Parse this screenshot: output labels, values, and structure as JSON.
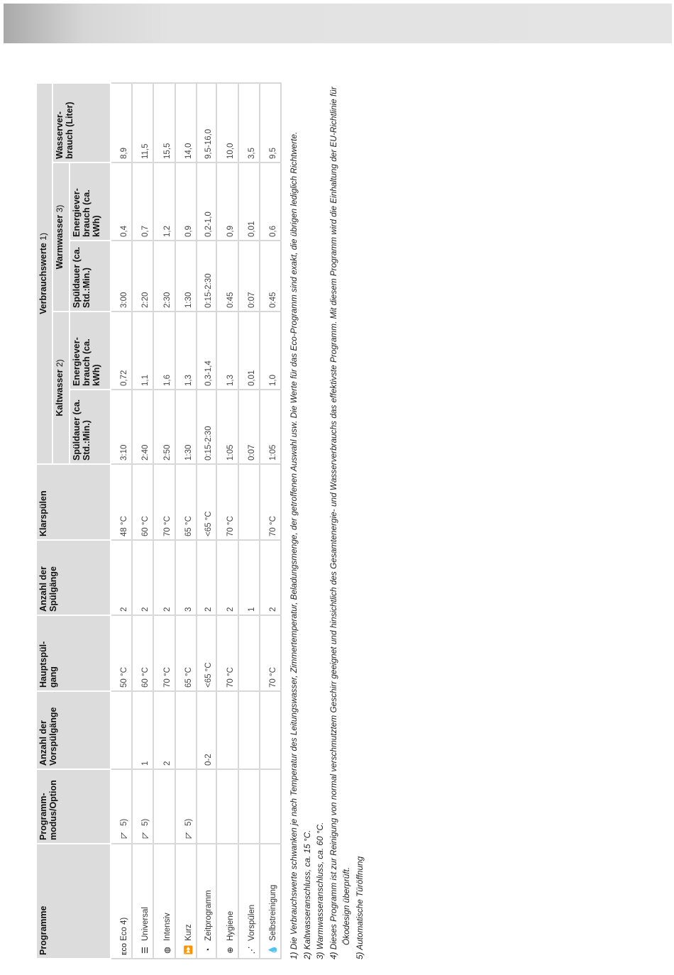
{
  "header": {
    "group": "Verbrauchswerte",
    "group_note": "1)",
    "kalt": "Kaltwasser",
    "kalt_note": "2)",
    "warm": "Warmwasser",
    "warm_note": "3)",
    "cols": [
      "Programme",
      "Programm-\nmodus/Option",
      "Anzahl der Vorspülgänge",
      "Hauptspül-\ngang",
      "Anzahl der Spülgänge",
      "Klarspülen",
      "Spüldauer (ca. Std.:Min.)",
      "Energiever-\nbrauch (ca. kWh)",
      "Spüldauer (ca. Std.:Min.)",
      "Energiever-\nbrauch (ca. kWh)",
      "Wasserver-\nbrauch (Liter)"
    ]
  },
  "rows": [
    {
      "icon": "eco-icon",
      "name": "Eco 4)",
      "mode": "5)",
      "mode_icon": "door-open-icon",
      "vor": "",
      "haupt": "50 °C",
      "anzahl": "2",
      "klar": "48 °C",
      "k_dauer": "3:10",
      "k_energie": "0,72",
      "w_dauer": "3:00",
      "w_energie": "0,4",
      "wasser": "8,9"
    },
    {
      "icon": "universal-icon",
      "name": "Universal",
      "mode": "5)",
      "mode_icon": "door-open-icon",
      "vor": "1",
      "haupt": "60 °C",
      "anzahl": "2",
      "klar": "60 °C",
      "k_dauer": "2:40",
      "k_energie": "1,1",
      "w_dauer": "2:20",
      "w_energie": "0,7",
      "wasser": "11,5"
    },
    {
      "icon": "intensiv-icon",
      "name": "Intensiv",
      "mode": "",
      "mode_icon": "",
      "vor": "2",
      "haupt": "70 °C",
      "anzahl": "2",
      "klar": "70 °C",
      "k_dauer": "2:50",
      "k_energie": "1,6",
      "w_dauer": "2:30",
      "w_energie": "1,2",
      "wasser": "15,5"
    },
    {
      "icon": "kurz-icon",
      "name": "Kurz",
      "mode": "5)",
      "mode_icon": "door-open-icon",
      "vor": "",
      "haupt": "65 °C",
      "anzahl": "3",
      "klar": "65 °C",
      "k_dauer": "1:30",
      "k_energie": "1,3",
      "w_dauer": "1:30",
      "w_energie": "0,9",
      "wasser": "14,0"
    },
    {
      "icon": "clock-icon",
      "name": "Zeitprogramm",
      "mode": "",
      "mode_icon": "",
      "vor": "0-2",
      "haupt": "<65 °C",
      "anzahl": "2",
      "klar": "<65 °C",
      "k_dauer": "0:15-2:30",
      "k_energie": "0,3-1,4",
      "w_dauer": "0:15-2:30",
      "w_energie": "0,2-1,0",
      "wasser": "9,5-16,0"
    },
    {
      "icon": "hygiene-icon",
      "name": "Hygiene",
      "mode": "",
      "mode_icon": "",
      "vor": "",
      "haupt": "70 °C",
      "anzahl": "2",
      "klar": "70 °C",
      "k_dauer": "1:05",
      "k_energie": "1,3",
      "w_dauer": "0:45",
      "w_energie": "0,9",
      "wasser": "10,0"
    },
    {
      "icon": "rinse-icon",
      "name": "Vorspülen",
      "mode": "",
      "mode_icon": "",
      "vor": "",
      "haupt": "",
      "anzahl": "1",
      "klar": "",
      "k_dauer": "0:07",
      "k_energie": "0,01",
      "w_dauer": "0:07",
      "w_energie": "0,01",
      "wasser": "3,5"
    },
    {
      "icon": "self-clean-icon",
      "name": "Selbstreinigung",
      "mode": "",
      "mode_icon": "",
      "vor": "",
      "haupt": "70 °C",
      "anzahl": "2",
      "klar": "70 °C",
      "k_dauer": "1:05",
      "k_energie": "1,0",
      "w_dauer": "0:45",
      "w_energie": "0,6",
      "wasser": "9,5"
    }
  ],
  "footnotes": [
    "1) Die Verbrauchswerte schwanken je nach Temperatur des Leitungswasser, Zimmertemperatur, Beladungsmenge, der getroffenen Auswahl usw. Die Werte für das Eco-Programm sind exakt, die übrigen lediglich Richtwerte.",
    "2) Kaltwasseranschluss, ca. 15 °C.",
    "3) Warmwasseranschluss, ca. 60 °C.",
    "4) Dieses Programm ist zur Reinigung von normal verschmutztem Geschirr geeignet und hinsichtlich des Gesamtenergie- und Wasserverbrauchs das effektivste Programm. Mit diesem Programm wird die Einhaltung der EU-Richtlinie für Ökodesign überprüft.",
    "5) Automatische Türöffnung"
  ]
}
